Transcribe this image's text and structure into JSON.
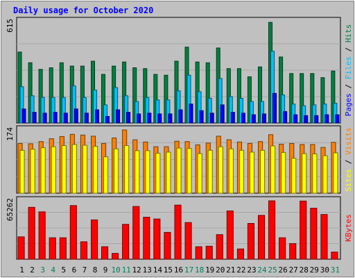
{
  "chart_data": {
    "type": "bar",
    "title": "Daily usage for October 2020",
    "categories": [
      "1",
      "2",
      "3",
      "4",
      "5",
      "6",
      "7",
      "8",
      "9",
      "10",
      "11",
      "12",
      "13",
      "14",
      "15",
      "16",
      "17",
      "18",
      "19",
      "20",
      "21",
      "22",
      "23",
      "24",
      "25",
      "26",
      "27",
      "28",
      "29",
      "30",
      "31"
    ],
    "weekend_days": [
      "3",
      "4",
      "10",
      "11",
      "17",
      "18",
      "24",
      "25",
      "31"
    ],
    "panels": [
      {
        "name": "hits-files-pages",
        "ymax": 615,
        "ytick_label": "615",
        "legend": [
          "Pages",
          "Files",
          "Hits"
        ],
        "series": [
          {
            "name": "Hits",
            "color": "#008040",
            "values": [
              430,
              365,
              325,
              335,
              365,
              345,
              345,
              375,
              295,
              345,
              370,
              335,
              330,
              295,
              290,
              375,
              460,
              370,
              365,
              455,
              330,
              330,
              280,
              340,
              610,
              400,
              300,
              300,
              300,
              275,
              315
            ]
          },
          {
            "name": "Files",
            "color": "#00c0ff",
            "values": [
              220,
              165,
              155,
              155,
              155,
              225,
              155,
              200,
              110,
              215,
              165,
              130,
              155,
              140,
              140,
              195,
              290,
              190,
              150,
              270,
              160,
              150,
              130,
              130,
              435,
              170,
              115,
              105,
              110,
              115,
              120
            ]
          },
          {
            "name": "Pages",
            "color": "#0000ff",
            "values": [
              85,
              65,
              60,
              65,
              60,
              85,
              60,
              80,
              40,
              80,
              65,
              55,
              60,
              55,
              55,
              80,
              115,
              75,
              60,
              110,
              65,
              60,
              50,
              55,
              180,
              70,
              50,
              45,
              45,
              50,
              50
            ]
          }
        ]
      },
      {
        "name": "visits-sites",
        "ymax": 174,
        "ytick_label": "174",
        "legend": [
          "Sites",
          "Visits"
        ],
        "series": [
          {
            "name": "Visits",
            "color": "#ff8000",
            "values": [
              137,
              136,
              142,
              150,
              156,
              162,
              160,
              157,
              137,
              152,
              174,
              147,
              141,
              128,
              128,
              143,
              142,
              133,
              138,
              157,
              147,
              141,
              137,
              142,
              161,
              135,
              137,
              134,
              134,
              126,
              140
            ]
          },
          {
            "name": "Sites",
            "color": "#ffff00",
            "values": [
              118,
              121,
              125,
              128,
              131,
              134,
              132,
              129,
              100,
              122,
              131,
              117,
              117,
              110,
              113,
              124,
              123,
              109,
              118,
              128,
              122,
              118,
              113,
              118,
              130,
              112,
              96,
              109,
              108,
              103,
              111
            ]
          }
        ]
      },
      {
        "name": "kbytes",
        "ymax": 65262,
        "ytick_label": "65262",
        "legend": [
          "KBytes"
        ],
        "series": [
          {
            "name": "KBytes",
            "color": "#ff0000",
            "values": [
              25000,
              58000,
              53000,
              24000,
              24000,
              60000,
              19500,
              44000,
              14000,
              6500,
              39000,
              59000,
              47000,
              45000,
              30000,
              60500,
              41000,
              14000,
              14500,
              27500,
              54000,
              11500,
              40000,
              49000,
              65262,
              24000,
              17500,
              65000,
              57000,
              50000,
              8000
            ]
          }
        ]
      }
    ]
  },
  "colors": {
    "title": "#0000ff",
    "plot_bg": "#c0c0c0",
    "border": "#000000",
    "weekday_label": "#000000",
    "weekend_label": "#00805c",
    "slash": "#000000"
  }
}
